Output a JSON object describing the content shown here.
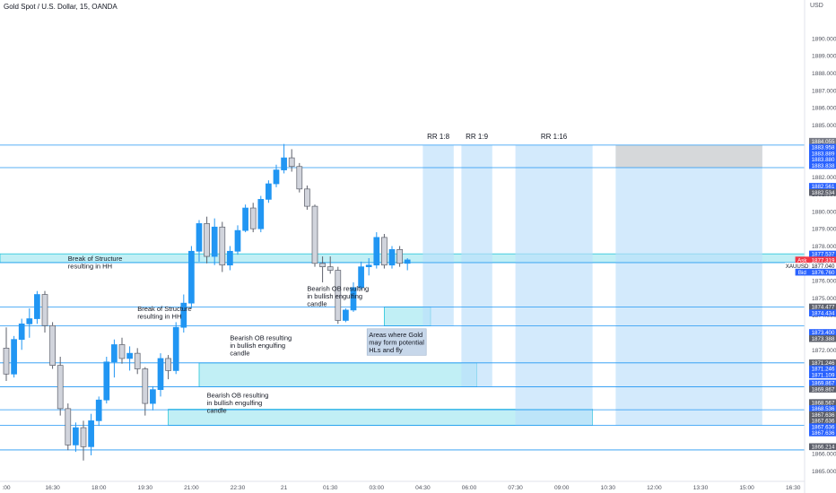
{
  "header": {
    "title": "Gold Spot / U.S. Dollar, 15, OANDA",
    "currency": "USD"
  },
  "chart_data": {
    "type": "candlestick",
    "symbol": "XAUUSD",
    "ylim": [
      1864.5,
      1891.5
    ],
    "price_ticks": [
      1890.0,
      1889.0,
      1888.0,
      1887.0,
      1886.0,
      1885.0,
      1883.0,
      1882.0,
      1881.0,
      1880.0,
      1879.0,
      1878.0,
      1876.0,
      1875.0,
      1874.0,
      1872.0,
      1870.0,
      1866.0,
      1865.0
    ],
    "time_labels": [
      {
        "t": 0,
        "label": ":00"
      },
      {
        "t": 6,
        "label": "16:30"
      },
      {
        "t": 12,
        "label": "18:00"
      },
      {
        "t": 18,
        "label": "19:30"
      },
      {
        "t": 24,
        "label": "21:00"
      },
      {
        "t": 30,
        "label": "22:30"
      },
      {
        "t": 36,
        "label": "21"
      },
      {
        "t": 42,
        "label": "01:30"
      },
      {
        "t": 48,
        "label": "03:00"
      },
      {
        "t": 54,
        "label": "04:30"
      },
      {
        "t": 60,
        "label": "06:00"
      },
      {
        "t": 66,
        "label": "07:30"
      },
      {
        "t": 72,
        "label": "09:00"
      },
      {
        "t": 78,
        "label": "10:30"
      },
      {
        "t": 84,
        "label": "12:00"
      },
      {
        "t": 90,
        "label": "13:30"
      },
      {
        "t": 96,
        "label": "15:00"
      },
      {
        "t": 102,
        "label": "16:30"
      }
    ],
    "candles": [
      [
        1872.1,
        1873.3,
        1870.2,
        1870.6
      ],
      [
        1870.6,
        1872.8,
        1870.4,
        1872.6
      ],
      [
        1872.6,
        1873.8,
        1872.0,
        1873.5
      ],
      [
        1873.5,
        1874.4,
        1872.7,
        1873.8
      ],
      [
        1873.8,
        1875.4,
        1873.5,
        1875.2
      ],
      [
        1875.2,
        1875.4,
        1873.0,
        1873.4
      ],
      [
        1873.4,
        1873.6,
        1870.9,
        1871.1
      ],
      [
        1871.1,
        1871.6,
        1868.2,
        1868.6
      ],
      [
        1868.6,
        1868.9,
        1866.2,
        1866.5
      ],
      [
        1866.5,
        1867.8,
        1866.1,
        1867.5
      ],
      [
        1867.5,
        1867.9,
        1865.6,
        1866.4
      ],
      [
        1866.4,
        1868.3,
        1865.9,
        1867.9
      ],
      [
        1867.9,
        1869.3,
        1867.6,
        1869.1
      ],
      [
        1869.1,
        1871.6,
        1868.9,
        1871.3
      ],
      [
        1871.3,
        1872.6,
        1870.4,
        1872.3
      ],
      [
        1872.3,
        1872.7,
        1871.2,
        1871.5
      ],
      [
        1871.5,
        1872.2,
        1870.8,
        1871.8
      ],
      [
        1871.8,
        1872.1,
        1870.6,
        1870.9
      ],
      [
        1870.9,
        1871.0,
        1868.2,
        1868.9
      ],
      [
        1868.9,
        1869.9,
        1868.5,
        1869.7
      ],
      [
        1869.7,
        1871.8,
        1869.3,
        1871.5
      ],
      [
        1871.5,
        1871.7,
        1870.3,
        1870.8
      ],
      [
        1870.8,
        1873.6,
        1870.6,
        1873.3
      ],
      [
        1873.3,
        1875.2,
        1873.0,
        1874.7
      ],
      [
        1874.7,
        1878.0,
        1874.4,
        1877.7
      ],
      [
        1877.7,
        1879.5,
        1877.1,
        1879.3
      ],
      [
        1879.3,
        1879.7,
        1877.0,
        1877.4
      ],
      [
        1877.4,
        1879.6,
        1876.9,
        1879.1
      ],
      [
        1879.1,
        1879.4,
        1876.5,
        1876.9
      ],
      [
        1876.9,
        1878.0,
        1876.6,
        1877.7
      ],
      [
        1877.7,
        1879.2,
        1877.5,
        1878.9
      ],
      [
        1878.9,
        1880.4,
        1878.8,
        1880.2
      ],
      [
        1880.2,
        1880.5,
        1878.8,
        1879.0
      ],
      [
        1879.0,
        1880.9,
        1878.8,
        1880.7
      ],
      [
        1880.7,
        1881.8,
        1880.5,
        1881.6
      ],
      [
        1881.6,
        1882.7,
        1881.4,
        1882.4
      ],
      [
        1882.4,
        1883.9,
        1882.2,
        1883.1
      ],
      [
        1883.1,
        1883.6,
        1882.3,
        1882.6
      ],
      [
        1882.6,
        1882.8,
        1881.1,
        1881.3
      ],
      [
        1881.3,
        1881.5,
        1880.1,
        1880.3
      ],
      [
        1880.3,
        1880.4,
        1876.8,
        1877.0
      ],
      [
        1877.0,
        1877.4,
        1875.9,
        1876.8
      ],
      [
        1876.8,
        1877.4,
        1876.4,
        1876.6
      ],
      [
        1876.6,
        1876.8,
        1873.5,
        1873.7
      ],
      [
        1873.7,
        1874.4,
        1873.6,
        1874.3
      ],
      [
        1874.3,
        1875.9,
        1874.2,
        1875.6
      ],
      [
        1875.6,
        1877.1,
        1875.5,
        1876.8
      ],
      [
        1876.8,
        1877.3,
        1876.3,
        1876.9
      ],
      [
        1876.9,
        1878.8,
        1876.7,
        1878.5
      ],
      [
        1878.5,
        1878.7,
        1876.7,
        1876.9
      ],
      [
        1876.9,
        1878.0,
        1876.7,
        1877.8
      ],
      [
        1877.8,
        1878.0,
        1876.8,
        1877.0
      ],
      [
        1877.0,
        1877.3,
        1876.6,
        1877.2
      ]
    ],
    "horizontal_lines": [
      1883.838,
      1882.534,
      1877.04,
      1874.477,
      1873.388,
      1871.246,
      1869.867,
      1868.536,
      1867.636,
      1866.214
    ],
    "zones": [
      {
        "type": "support",
        "from": 1877.55,
        "to": 1877.05
      },
      {
        "type": "order-block",
        "from": 1874.477,
        "to": 1873.388
      },
      {
        "type": "order-block",
        "from": 1871.246,
        "to": 1869.867
      },
      {
        "type": "order-block",
        "from": 1868.567,
        "to": 1867.636
      }
    ],
    "rr_boxes": [
      {
        "label": "RR 1:8",
        "t1": 54,
        "t2": 58,
        "top": 1883.838,
        "bottom": 1873.388
      },
      {
        "label": "RR 1:9",
        "t1": 59,
        "t2": 63,
        "top": 1883.838,
        "bottom": 1869.867
      },
      {
        "label": "RR 1:16",
        "t1": 66,
        "t2": 76,
        "top": 1883.838,
        "bottom": 1867.636
      },
      {
        "label": "",
        "t1": 79,
        "t2": 98,
        "top": 1883.838,
        "bottom": 1867.636
      }
    ],
    "annotations": [
      {
        "text": "Break of Structure\nresulting in HH",
        "t": 8,
        "price": 1877.15
      },
      {
        "text": "Break of Structure\nresulting in HH",
        "t": 17,
        "price": 1874.25
      },
      {
        "text": "Bearish OB resulting\nin bullish engulfing\ncandle",
        "t": 29,
        "price": 1872.55
      },
      {
        "text": "Bearish OB resulting\nin bullish engulfing\ncandle",
        "t": 39,
        "price": 1875.4
      },
      {
        "text": "Bearish OB resulting\nin bullish engulfing\ncandle",
        "t": 26,
        "price": 1869.25
      },
      {
        "text": "Areas where Gold\nmay form potential\nHLs and fly",
        "t": 47,
        "price": 1872.75,
        "boxed": true
      }
    ],
    "price_tags": [
      {
        "label": "1884.055",
        "price": 1884.055,
        "color": "#787b86"
      },
      {
        "label": "1883.958",
        "price": 1883.705,
        "color": "#2962ff"
      },
      {
        "label": "1883.889",
        "price": 1883.355,
        "color": "#2962ff"
      },
      {
        "label": "1883.880",
        "price": 1883.005,
        "color": "#2962ff"
      },
      {
        "label": "1883.838",
        "price": 1882.655,
        "color": "#2962ff"
      },
      {
        "label": "1882.561",
        "price": 1881.45,
        "color": "#2962ff"
      },
      {
        "label": "1882.534",
        "price": 1881.1,
        "color": "#5d606b"
      },
      {
        "label": "1877.537",
        "price": 1877.537,
        "color": "#2962ff"
      },
      {
        "label": "1877.319",
        "price": 1877.19,
        "color": "#f23645",
        "prefix": "Ask"
      },
      {
        "label": "1877.040",
        "price": 1876.84,
        "color": "#ffffff",
        "text_color": "#131722",
        "prefix": "XAUUSD"
      },
      {
        "label": "1876.760",
        "price": 1876.49,
        "color": "#2962ff",
        "prefix": "Bid"
      },
      {
        "label": "1874.477",
        "price": 1874.477,
        "color": "#5d606b"
      },
      {
        "label": "1874.434",
        "price": 1874.13,
        "color": "#2962ff"
      },
      {
        "label": "1873.400",
        "price": 1873.0,
        "color": "#2962ff"
      },
      {
        "label": "1873.388",
        "price": 1872.65,
        "color": "#5d606b"
      },
      {
        "label": "1871.246",
        "price": 1871.246,
        "color": "#5d606b"
      },
      {
        "label": "1871.246",
        "price": 1870.9,
        "color": "#2962ff"
      },
      {
        "label": "1871.109",
        "price": 1870.55,
        "color": "#2962ff"
      },
      {
        "label": "1869.867",
        "price": 1870.08,
        "color": "#2962ff"
      },
      {
        "label": "1869.867",
        "price": 1869.73,
        "color": "#5d606b"
      },
      {
        "label": "1868.567",
        "price": 1868.95,
        "color": "#5d606b"
      },
      {
        "label": "1868.536",
        "price": 1868.6,
        "color": "#2962ff"
      },
      {
        "label": "1867.636",
        "price": 1868.25,
        "color": "#5d606b"
      },
      {
        "label": "1867.636",
        "price": 1867.9,
        "color": "#5d606b"
      },
      {
        "label": "1867.636",
        "price": 1867.55,
        "color": "#2962ff"
      },
      {
        "label": "1867.636",
        "price": 1867.2,
        "color": "#2962ff"
      },
      {
        "label": "1866.214",
        "price": 1866.4,
        "color": "#5d606b"
      }
    ]
  },
  "colors": {
    "up": "#2196f3",
    "down": "#d1d4dc",
    "down_border": "#5d606b",
    "zone": "#b2ebf2",
    "line": "#2196f3",
    "rr": "#bbdefb",
    "dark": "#a0a0a0"
  }
}
